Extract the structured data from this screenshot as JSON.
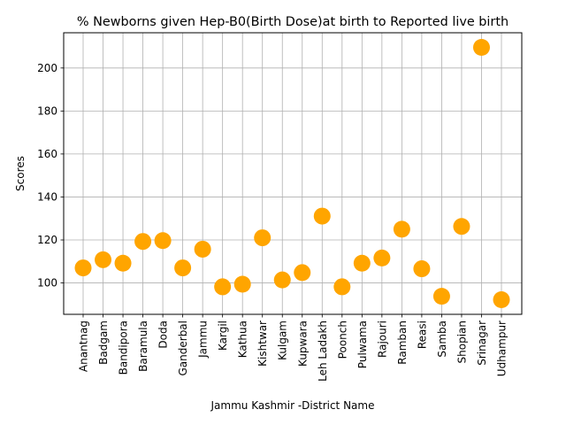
{
  "chart_data": {
    "type": "scatter",
    "title": "% Newborns given Hep-B0(Birth Dose)at birth to Reported live birth",
    "xlabel": "Jammu Kashmir -District Name",
    "ylabel": "Scores",
    "categories": [
      "Anantnag",
      "Badgam",
      "Bandipora",
      "Baramula",
      "Doda",
      "Ganderbal",
      "Jammu",
      "Kargil",
      "Kathua",
      "Kishtwar",
      "Kulgam",
      "Kupwara",
      "Leh Ladakh",
      "Poonch",
      "Pulwama",
      "Rajouri",
      "Ramban",
      "Reasi",
      "Samba",
      "Shopian",
      "Srinagar",
      "Udhampur"
    ],
    "values": [
      107.0,
      110.8,
      109.2,
      119.3,
      119.7,
      107.0,
      115.7,
      98.2,
      99.4,
      121.0,
      101.4,
      104.8,
      131.1,
      98.2,
      109.2,
      111.6,
      125.0,
      106.6,
      93.8,
      126.3,
      209.6,
      92.2
    ],
    "yticks": [
      100,
      120,
      140,
      160,
      180,
      200
    ],
    "ylim": [
      85.4,
      216.4
    ],
    "grid": true,
    "marker_color": "#ffa500"
  }
}
